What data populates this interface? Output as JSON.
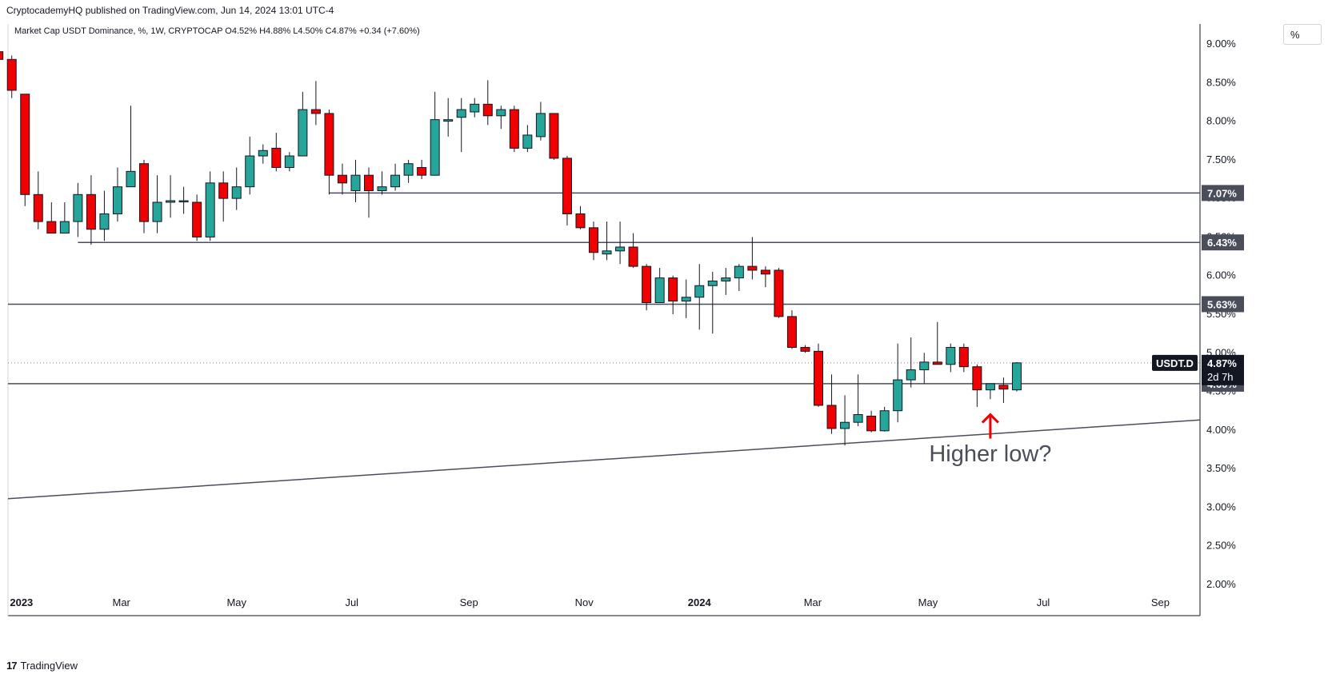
{
  "header": {
    "published": "CryptocademyHQ published on TradingView.com, Jun 14, 2024 13:01 UTC-4",
    "legend": "Market Cap USDT Dominance, %, 1W, CRYPTOCAP  O4.52%  H4.88%  L4.50%  C4.87%  +0.34 (+7.60%)"
  },
  "scale_unit": "%",
  "footer": {
    "brand_text": "TradingView",
    "logo_text": "17"
  },
  "colors": {
    "up": "#26a69a",
    "down": "#f00000",
    "wick": "#131722",
    "line": "#4a4e5a",
    "arrow": "#f00000"
  },
  "chart_data": {
    "type": "candlestick",
    "interval": "1W",
    "y_unit": "%",
    "ylim": [
      2.0,
      9.0
    ],
    "y_ticks": [
      "2.00%",
      "2.50%",
      "3.00%",
      "3.50%",
      "4.00%",
      "4.50%",
      "5.00%",
      "5.50%",
      "6.00%",
      "6.50%",
      "7.00%",
      "7.50%",
      "8.00%",
      "8.50%",
      "9.00%"
    ],
    "x_ticks": [
      {
        "label": "2023",
        "date": "2023-01-01",
        "bold": true
      },
      {
        "label": "Mar",
        "date": "2023-03-01"
      },
      {
        "label": "May",
        "date": "2023-05-01"
      },
      {
        "label": "Jul",
        "date": "2023-07-01"
      },
      {
        "label": "Sep",
        "date": "2023-09-01"
      },
      {
        "label": "Nov",
        "date": "2023-11-01"
      },
      {
        "label": "2024",
        "date": "2024-01-01",
        "bold": true
      },
      {
        "label": "Mar",
        "date": "2024-03-01"
      },
      {
        "label": "May",
        "date": "2024-05-01"
      },
      {
        "label": "Jul",
        "date": "2024-07-01"
      },
      {
        "label": "Sep",
        "date": "2024-09-01"
      }
    ],
    "x_range": [
      "2022-12-31",
      "2024-09-22"
    ],
    "first_week": "2022-12-26",
    "candles": [
      [
        8.9,
        8.9,
        8.7,
        8.8
      ],
      [
        8.8,
        8.85,
        8.3,
        8.4
      ],
      [
        8.35,
        8.35,
        6.9,
        7.05
      ],
      [
        7.05,
        7.35,
        6.6,
        6.7
      ],
      [
        6.7,
        6.95,
        6.55,
        6.55
      ],
      [
        6.55,
        6.95,
        6.55,
        6.7
      ],
      [
        6.7,
        7.2,
        6.5,
        7.05
      ],
      [
        7.05,
        7.3,
        6.4,
        6.6
      ],
      [
        6.6,
        7.1,
        6.45,
        6.8
      ],
      [
        6.8,
        7.4,
        6.7,
        7.15
      ],
      [
        7.15,
        8.2,
        7.2,
        7.35
      ],
      [
        7.45,
        7.5,
        6.55,
        6.7
      ],
      [
        6.7,
        7.3,
        6.55,
        6.95
      ],
      [
        6.95,
        7.3,
        6.75,
        6.97
      ],
      [
        6.97,
        7.15,
        6.8,
        6.97
      ],
      [
        6.95,
        7.05,
        6.45,
        6.5
      ],
      [
        6.5,
        7.35,
        6.45,
        7.2
      ],
      [
        7.2,
        7.35,
        6.7,
        7.0
      ],
      [
        7.0,
        7.4,
        6.85,
        7.15
      ],
      [
        7.15,
        7.8,
        7.05,
        7.55
      ],
      [
        7.55,
        7.7,
        7.45,
        7.62
      ],
      [
        7.65,
        7.85,
        7.35,
        7.4
      ],
      [
        7.4,
        7.6,
        7.35,
        7.55
      ],
      [
        7.55,
        8.38,
        7.55,
        8.15
      ],
      [
        8.15,
        8.52,
        7.95,
        8.1
      ],
      [
        8.1,
        8.15,
        7.05,
        7.3
      ],
      [
        7.3,
        7.45,
        7.05,
        7.2
      ],
      [
        7.1,
        7.5,
        6.95,
        7.3
      ],
      [
        7.3,
        7.4,
        6.75,
        7.1
      ],
      [
        7.1,
        7.35,
        7.05,
        7.15
      ],
      [
        7.15,
        7.45,
        7.1,
        7.3
      ],
      [
        7.3,
        7.5,
        7.2,
        7.45
      ],
      [
        7.4,
        7.5,
        7.25,
        7.3
      ],
      [
        7.3,
        8.38,
        7.3,
        8.02
      ],
      [
        8.0,
        8.3,
        7.8,
        8.02
      ],
      [
        8.05,
        8.3,
        7.6,
        8.15
      ],
      [
        8.12,
        8.3,
        8.05,
        8.22
      ],
      [
        8.22,
        8.53,
        7.95,
        8.07
      ],
      [
        8.07,
        8.2,
        7.9,
        8.15
      ],
      [
        8.15,
        8.2,
        7.6,
        7.65
      ],
      [
        7.65,
        7.95,
        7.6,
        7.82
      ],
      [
        7.8,
        8.25,
        7.75,
        8.1
      ],
      [
        8.1,
        8.1,
        7.5,
        7.52
      ],
      [
        7.52,
        7.55,
        6.65,
        6.8
      ],
      [
        6.8,
        6.9,
        6.6,
        6.62
      ],
      [
        6.62,
        6.7,
        6.2,
        6.3
      ],
      [
        6.28,
        6.7,
        6.2,
        6.32
      ],
      [
        6.32,
        6.7,
        6.15,
        6.37
      ],
      [
        6.37,
        6.55,
        6.1,
        6.12
      ],
      [
        6.12,
        6.15,
        5.55,
        5.65
      ],
      [
        5.65,
        6.1,
        5.65,
        5.97
      ],
      [
        5.97,
        6.0,
        5.5,
        5.67
      ],
      [
        5.67,
        5.95,
        5.45,
        5.72
      ],
      [
        5.72,
        6.15,
        5.3,
        5.87
      ],
      [
        5.87,
        6.05,
        5.25,
        5.93
      ],
      [
        5.93,
        6.1,
        5.75,
        5.97
      ],
      [
        5.97,
        6.15,
        5.8,
        6.12
      ],
      [
        6.12,
        6.5,
        5.95,
        6.07
      ],
      [
        6.07,
        6.12,
        5.85,
        6.02
      ],
      [
        6.07,
        6.1,
        5.45,
        5.47
      ],
      [
        5.47,
        5.55,
        5.05,
        5.07
      ],
      [
        5.07,
        5.1,
        5.0,
        5.02
      ],
      [
        5.02,
        5.12,
        4.3,
        4.32
      ],
      [
        4.32,
        4.72,
        3.95,
        4.02
      ],
      [
        4.02,
        4.45,
        3.8,
        4.1
      ],
      [
        4.1,
        4.72,
        4.05,
        4.2
      ],
      [
        4.18,
        4.25,
        3.97,
        3.99
      ],
      [
        3.99,
        4.3,
        3.98,
        4.25
      ],
      [
        4.25,
        5.12,
        4.1,
        4.65
      ],
      [
        4.65,
        5.2,
        4.55,
        4.78
      ],
      [
        4.78,
        5.0,
        4.6,
        4.88
      ],
      [
        4.88,
        5.4,
        4.85,
        4.85
      ],
      [
        4.85,
        5.12,
        4.75,
        5.07
      ],
      [
        5.07,
        5.12,
        4.75,
        4.82
      ],
      [
        4.82,
        4.85,
        4.3,
        4.52
      ],
      [
        4.52,
        4.6,
        4.4,
        4.6
      ],
      [
        4.58,
        4.68,
        4.35,
        4.53
      ],
      [
        4.52,
        4.88,
        4.5,
        4.87
      ]
    ],
    "horizontal_levels": [
      {
        "value": 7.07,
        "label": "7.07%",
        "start_date": "2023-06-19"
      },
      {
        "value": 6.43,
        "label": "6.43%",
        "start_date": "2023-02-06"
      },
      {
        "value": 5.63,
        "label": "5.63%",
        "start_date": "2022-12-31"
      },
      {
        "value": 4.6,
        "label": "4.60%",
        "start_date": "2022-12-31"
      }
    ],
    "trend_line": {
      "start": [
        "2022-12-31",
        3.11
      ],
      "end": [
        "2024-09-22",
        4.13
      ]
    },
    "current_price": {
      "value": 4.87,
      "label": "4.87%",
      "symbol": "USDT.D",
      "countdown": "2d 7h"
    },
    "annotation": {
      "text": "Higher low?",
      "date": "2024-06-03",
      "value": 3.7,
      "arrow_value": 4.2
    }
  }
}
